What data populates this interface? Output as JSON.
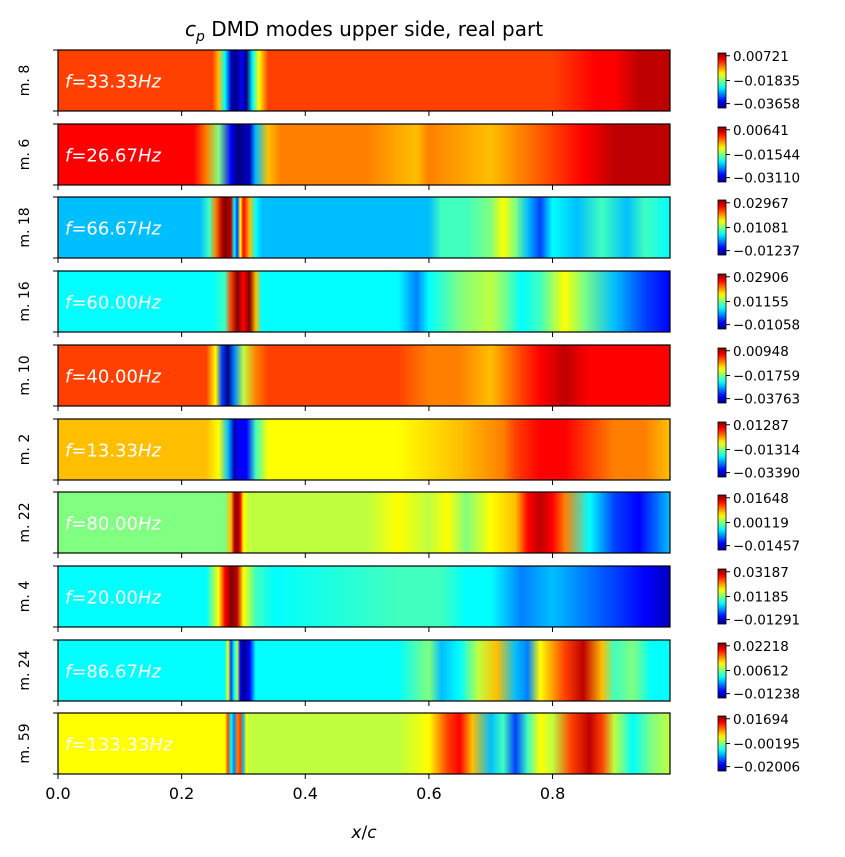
{
  "chart_data": {
    "type": "heatmap",
    "title_base": "DMD modes upper side, real part",
    "title_symbol": "c",
    "title_subscript": "p",
    "xlabel_var": "x",
    "xlabel_sep": "/",
    "xlabel_den": "c",
    "xlim": [
      0,
      0.99
    ],
    "xticks": [
      0.0,
      0.2,
      0.4,
      0.6,
      0.8
    ],
    "xtick_labels": [
      "0.0",
      "0.2",
      "0.4",
      "0.6",
      "0.8"
    ],
    "colormap": "jet",
    "freq_prefix": "f = ",
    "freq_unit": "Hz",
    "modes": [
      {
        "label": "m. 8",
        "freq": "33.33",
        "cbar_ticks": [
          "0.00721",
          "−0.01835",
          "−0.03658"
        ],
        "profile": [
          [
            0,
            0.82
          ],
          [
            0.25,
            0.82
          ],
          [
            0.26,
            0.7
          ],
          [
            0.27,
            0.35
          ],
          [
            0.28,
            0.05
          ],
          [
            0.29,
            0.02
          ],
          [
            0.295,
            0.12
          ],
          [
            0.305,
            0.02
          ],
          [
            0.315,
            0.35
          ],
          [
            0.325,
            0.65
          ],
          [
            0.34,
            0.8
          ],
          [
            0.35,
            0.83
          ],
          [
            0.4,
            0.8
          ],
          [
            0.6,
            0.8
          ],
          [
            0.7,
            0.83
          ],
          [
            0.8,
            0.84
          ],
          [
            0.87,
            0.86
          ],
          [
            0.9,
            0.88
          ],
          [
            0.94,
            0.92
          ],
          [
            0.96,
            0.96
          ],
          [
            0.99,
            0.96
          ]
        ]
      },
      {
        "label": "m. 6",
        "freq": "26.67",
        "cbar_ticks": [
          "0.00641",
          "−0.01544",
          "−0.03110"
        ],
        "profile": [
          [
            0,
            0.86
          ],
          [
            0.22,
            0.86
          ],
          [
            0.24,
            0.78
          ],
          [
            0.26,
            0.5
          ],
          [
            0.28,
            0.12
          ],
          [
            0.29,
            0.03
          ],
          [
            0.31,
            0.05
          ],
          [
            0.32,
            0.3
          ],
          [
            0.34,
            0.68
          ],
          [
            0.36,
            0.72
          ],
          [
            0.5,
            0.72
          ],
          [
            0.58,
            0.68
          ],
          [
            0.6,
            0.74
          ],
          [
            0.7,
            0.68
          ],
          [
            0.75,
            0.78
          ],
          [
            0.8,
            0.82
          ],
          [
            0.85,
            0.88
          ],
          [
            0.9,
            0.92
          ],
          [
            0.95,
            0.95
          ],
          [
            0.99,
            0.92
          ]
        ]
      },
      {
        "label": "m. 18",
        "freq": "66.67",
        "cbar_ticks": [
          "0.02967",
          "0.01081",
          "−0.01237"
        ],
        "profile": [
          [
            0,
            0.3
          ],
          [
            0.23,
            0.3
          ],
          [
            0.245,
            0.45
          ],
          [
            0.255,
            0.75
          ],
          [
            0.265,
            0.92
          ],
          [
            0.27,
            0.99
          ],
          [
            0.28,
            0.92
          ],
          [
            0.285,
            0.35
          ],
          [
            0.29,
            0.2
          ],
          [
            0.295,
            0.6
          ],
          [
            0.3,
            0.85
          ],
          [
            0.31,
            0.7
          ],
          [
            0.32,
            0.4
          ],
          [
            0.33,
            0.3
          ],
          [
            0.6,
            0.3
          ],
          [
            0.62,
            0.42
          ],
          [
            0.66,
            0.45
          ],
          [
            0.7,
            0.5
          ],
          [
            0.72,
            0.62
          ],
          [
            0.74,
            0.48
          ],
          [
            0.76,
            0.3
          ],
          [
            0.78,
            0.2
          ],
          [
            0.8,
            0.38
          ],
          [
            0.84,
            0.3
          ],
          [
            0.88,
            0.45
          ],
          [
            0.92,
            0.3
          ],
          [
            0.95,
            0.42
          ],
          [
            0.99,
            0.35
          ]
        ]
      },
      {
        "label": "m. 16",
        "freq": "60.00",
        "cbar_ticks": [
          "0.02906",
          "0.01155",
          "−0.01058"
        ],
        "profile": [
          [
            0,
            0.35
          ],
          [
            0.25,
            0.35
          ],
          [
            0.27,
            0.45
          ],
          [
            0.28,
            0.82
          ],
          [
            0.29,
            0.99
          ],
          [
            0.3,
            0.9
          ],
          [
            0.31,
            0.99
          ],
          [
            0.32,
            0.7
          ],
          [
            0.33,
            0.4
          ],
          [
            0.34,
            0.35
          ],
          [
            0.55,
            0.35
          ],
          [
            0.58,
            0.25
          ],
          [
            0.6,
            0.38
          ],
          [
            0.65,
            0.48
          ],
          [
            0.7,
            0.55
          ],
          [
            0.72,
            0.48
          ],
          [
            0.75,
            0.35
          ],
          [
            0.78,
            0.45
          ],
          [
            0.82,
            0.6
          ],
          [
            0.85,
            0.52
          ],
          [
            0.9,
            0.3
          ],
          [
            0.95,
            0.2
          ],
          [
            0.99,
            0.12
          ]
        ]
      },
      {
        "label": "m. 10",
        "freq": "40.00",
        "cbar_ticks": [
          "0.00948",
          "−0.01759",
          "−0.03763"
        ],
        "profile": [
          [
            0,
            0.82
          ],
          [
            0.24,
            0.82
          ],
          [
            0.255,
            0.6
          ],
          [
            0.265,
            0.2
          ],
          [
            0.275,
            0.02
          ],
          [
            0.285,
            0.25
          ],
          [
            0.3,
            0.55
          ],
          [
            0.32,
            0.78
          ],
          [
            0.34,
            0.8
          ],
          [
            0.55,
            0.8
          ],
          [
            0.6,
            0.75
          ],
          [
            0.65,
            0.72
          ],
          [
            0.7,
            0.7
          ],
          [
            0.75,
            0.8
          ],
          [
            0.78,
            0.88
          ],
          [
            0.82,
            0.92
          ],
          [
            0.86,
            0.9
          ],
          [
            0.9,
            0.85
          ],
          [
            0.94,
            0.88
          ],
          [
            0.99,
            0.86
          ]
        ]
      },
      {
        "label": "m. 2",
        "freq": "13.33",
        "cbar_ticks": [
          "0.01287",
          "−0.01314",
          "−0.03390"
        ],
        "profile": [
          [
            0,
            0.7
          ],
          [
            0.24,
            0.7
          ],
          [
            0.26,
            0.6
          ],
          [
            0.275,
            0.3
          ],
          [
            0.285,
            0.05
          ],
          [
            0.295,
            0.15
          ],
          [
            0.305,
            0.1
          ],
          [
            0.32,
            0.45
          ],
          [
            0.34,
            0.65
          ],
          [
            0.36,
            0.62
          ],
          [
            0.55,
            0.62
          ],
          [
            0.65,
            0.66
          ],
          [
            0.72,
            0.72
          ],
          [
            0.74,
            0.82
          ],
          [
            0.78,
            0.88
          ],
          [
            0.82,
            0.9
          ],
          [
            0.86,
            0.82
          ],
          [
            0.9,
            0.78
          ],
          [
            0.95,
            0.72
          ],
          [
            0.99,
            0.68
          ]
        ]
      },
      {
        "label": "m. 22",
        "freq": "80.00",
        "cbar_ticks": [
          "0.01648",
          "0.00119",
          "−0.01457"
        ],
        "profile": [
          [
            0,
            0.52
          ],
          [
            0.27,
            0.52
          ],
          [
            0.28,
            0.68
          ],
          [
            0.285,
            0.92
          ],
          [
            0.29,
            0.99
          ],
          [
            0.295,
            0.9
          ],
          [
            0.3,
            0.65
          ],
          [
            0.31,
            0.55
          ],
          [
            0.5,
            0.55
          ],
          [
            0.55,
            0.6
          ],
          [
            0.6,
            0.55
          ],
          [
            0.63,
            0.62
          ],
          [
            0.66,
            0.52
          ],
          [
            0.7,
            0.6
          ],
          [
            0.74,
            0.7
          ],
          [
            0.76,
            0.88
          ],
          [
            0.78,
            0.95
          ],
          [
            0.8,
            0.85
          ],
          [
            0.82,
            0.72
          ],
          [
            0.86,
            0.4
          ],
          [
            0.9,
            0.2
          ],
          [
            0.94,
            0.15
          ],
          [
            0.99,
            0.3
          ]
        ]
      },
      {
        "label": "m. 4",
        "freq": "20.00",
        "cbar_ticks": [
          "0.03187",
          "0.01185",
          "−0.01291"
        ],
        "profile": [
          [
            0,
            0.38
          ],
          [
            0.24,
            0.38
          ],
          [
            0.26,
            0.6
          ],
          [
            0.27,
            0.9
          ],
          [
            0.28,
            0.99
          ],
          [
            0.29,
            0.95
          ],
          [
            0.3,
            0.6
          ],
          [
            0.32,
            0.42
          ],
          [
            0.35,
            0.4
          ],
          [
            0.55,
            0.42
          ],
          [
            0.62,
            0.45
          ],
          [
            0.66,
            0.4
          ],
          [
            0.7,
            0.35
          ],
          [
            0.75,
            0.28
          ],
          [
            0.8,
            0.32
          ],
          [
            0.85,
            0.22
          ],
          [
            0.9,
            0.18
          ],
          [
            0.95,
            0.1
          ],
          [
            0.99,
            0.08
          ]
        ]
      },
      {
        "label": "m. 24",
        "freq": "86.67",
        "cbar_ticks": [
          "0.02218",
          "0.00612",
          "−0.01238"
        ],
        "profile": [
          [
            0,
            0.35
          ],
          [
            0.27,
            0.35
          ],
          [
            0.275,
            0.6
          ],
          [
            0.28,
            0.2
          ],
          [
            0.285,
            0.35
          ],
          [
            0.29,
            0.55
          ],
          [
            0.295,
            0.15
          ],
          [
            0.3,
            0.03
          ],
          [
            0.31,
            0.1
          ],
          [
            0.32,
            0.35
          ],
          [
            0.5,
            0.38
          ],
          [
            0.55,
            0.4
          ],
          [
            0.6,
            0.5
          ],
          [
            0.62,
            0.3
          ],
          [
            0.65,
            0.4
          ],
          [
            0.68,
            0.55
          ],
          [
            0.71,
            0.7
          ],
          [
            0.74,
            0.3
          ],
          [
            0.76,
            0.25
          ],
          [
            0.78,
            0.6
          ],
          [
            0.82,
            0.82
          ],
          [
            0.85,
            0.92
          ],
          [
            0.88,
            0.7
          ],
          [
            0.9,
            0.45
          ],
          [
            0.93,
            0.5
          ],
          [
            0.96,
            0.35
          ],
          [
            0.99,
            0.4
          ]
        ]
      },
      {
        "label": "m. 59",
        "freq": "133.33",
        "cbar_ticks": [
          "0.01694",
          "−0.00195",
          "−0.02006"
        ],
        "profile": [
          [
            0,
            0.6
          ],
          [
            0.27,
            0.6
          ],
          [
            0.275,
            0.8
          ],
          [
            0.28,
            0.35
          ],
          [
            0.285,
            0.25
          ],
          [
            0.29,
            0.75
          ],
          [
            0.295,
            0.82
          ],
          [
            0.3,
            0.3
          ],
          [
            0.305,
            0.6
          ],
          [
            0.31,
            0.58
          ],
          [
            0.55,
            0.58
          ],
          [
            0.6,
            0.62
          ],
          [
            0.63,
            0.82
          ],
          [
            0.65,
            0.9
          ],
          [
            0.67,
            0.7
          ],
          [
            0.7,
            0.3
          ],
          [
            0.72,
            0.45
          ],
          [
            0.74,
            0.2
          ],
          [
            0.76,
            0.45
          ],
          [
            0.78,
            0.65
          ],
          [
            0.8,
            0.55
          ],
          [
            0.83,
            0.8
          ],
          [
            0.86,
            0.95
          ],
          [
            0.88,
            0.82
          ],
          [
            0.9,
            0.55
          ],
          [
            0.93,
            0.4
          ],
          [
            0.96,
            0.5
          ],
          [
            0.99,
            0.55
          ]
        ]
      }
    ]
  }
}
